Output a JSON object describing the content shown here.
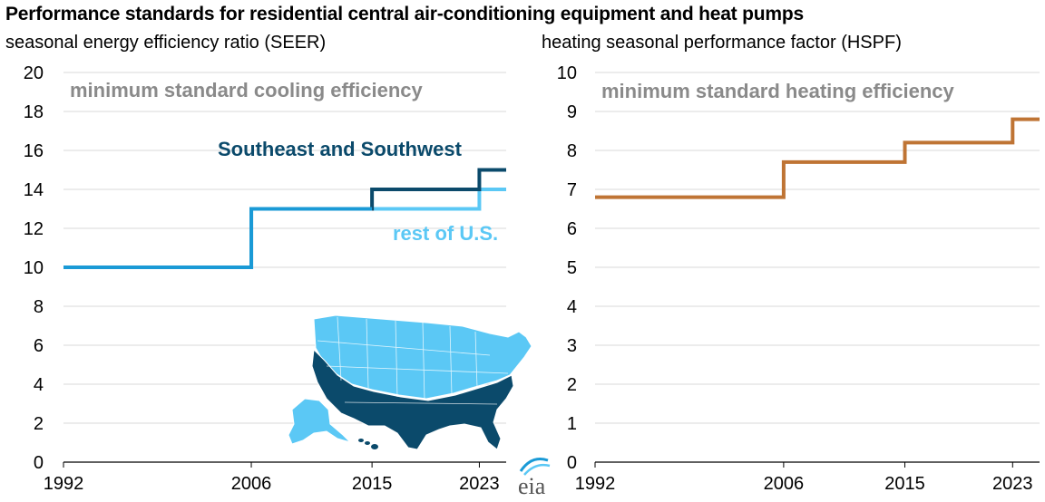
{
  "title": "Performance standards for residential central air-conditioning equipment and heat pumps",
  "logo_text": "eia",
  "colors": {
    "dark_blue": "#0b4a6b",
    "light_blue": "#5bc8f5",
    "mid_blue": "#1a9ad6",
    "orange": "#bf7434",
    "gray_text": "#8a8a8a",
    "grid": "#d9d9d9"
  },
  "chart_data": [
    {
      "type": "line",
      "step": true,
      "ylabel": "seasonal energy efficiency ratio (SEER)",
      "annotation": "minimum standard cooling efficiency",
      "ylim": [
        0,
        20
      ],
      "yticks": [
        0,
        2,
        4,
        6,
        8,
        10,
        12,
        14,
        16,
        18,
        20
      ],
      "xlim": [
        1992,
        2025
      ],
      "xticks": [
        1992,
        2006,
        2015,
        2023
      ],
      "grid": true,
      "series": [
        {
          "name": "Southeast and Southwest",
          "color": "dark_blue",
          "x": [
            1992,
            2006,
            2015,
            2023,
            2025
          ],
          "y": [
            10,
            13,
            14,
            15,
            15
          ]
        },
        {
          "name": "rest of U.S.",
          "color": "light_blue",
          "x": [
            1992,
            2006,
            2015,
            2023,
            2025
          ],
          "y": [
            10,
            13,
            13,
            14,
            14
          ]
        }
      ],
      "shared_segment_color": "mid_blue",
      "inset": "map of United States with southeast and southwest states in dark blue, rest in light blue"
    },
    {
      "type": "line",
      "step": true,
      "ylabel": "heating seasonal performance factor (HSPF)",
      "annotation": "minimum standard heating efficiency",
      "ylim": [
        0,
        10
      ],
      "yticks": [
        0,
        1,
        2,
        3,
        4,
        5,
        6,
        7,
        8,
        9,
        10
      ],
      "xlim": [
        1992,
        2025
      ],
      "xticks": [
        1992,
        2006,
        2015,
        2023
      ],
      "grid": true,
      "series": [
        {
          "color": "orange",
          "x": [
            1992,
            2006,
            2015,
            2023,
            2025
          ],
          "y": [
            6.8,
            7.7,
            8.2,
            8.8,
            8.8
          ]
        }
      ]
    }
  ]
}
